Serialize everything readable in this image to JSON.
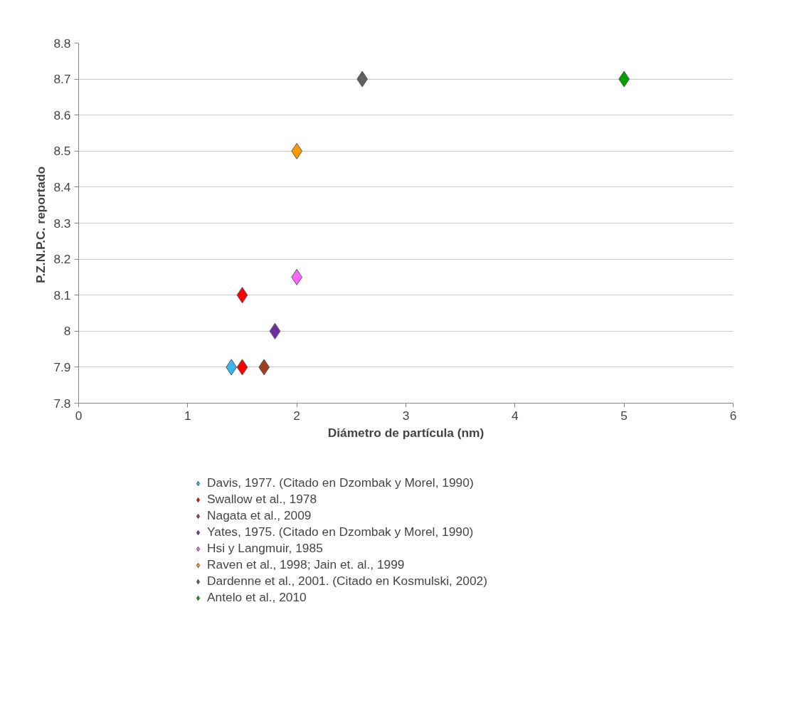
{
  "chart_data": {
    "type": "scatter",
    "xlabel": "Diámetro de partícula (nm)",
    "ylabel": "P.Z.N.P.C.  reportado",
    "xlim": [
      0,
      6
    ],
    "xticks": [
      0,
      1,
      2,
      3,
      4,
      5,
      6
    ],
    "ylim": [
      7.8,
      8.8
    ],
    "yticks": [
      7.8,
      7.9,
      8,
      8.1,
      8.2,
      8.3,
      8.4,
      8.5,
      8.6,
      8.7,
      8.8
    ],
    "grid": "y",
    "legend": "bottom",
    "marker": "diamond",
    "series": [
      {
        "name": "Davis, 1977. (Citado en Dzombak y Morel, 1990)",
        "color": "#3cb4f0",
        "x": [
          1.4
        ],
        "values": [
          7.9
        ]
      },
      {
        "name": "Swallow et al., 1978",
        "color": "#ff0000",
        "x": [
          1.5,
          1.5
        ],
        "values": [
          8.1,
          7.9
        ]
      },
      {
        "name": "Nagata et al., 2009",
        "color": "#a0401c",
        "x": [
          1.7
        ],
        "values": [
          7.9
        ]
      },
      {
        "name": "Yates, 1975. (Citado en Dzombak y Morel, 1990)",
        "color": "#7030a0",
        "x": [
          1.8
        ],
        "values": [
          8.0
        ]
      },
      {
        "name": "Hsi y Langmuir, 1985",
        "color": "#ff66ff",
        "x": [
          2.0
        ],
        "values": [
          8.15
        ]
      },
      {
        "name": "Raven et al., 1998; Jain et. al., 1999",
        "color": "#ff9900",
        "x": [
          2.0
        ],
        "values": [
          8.5
        ]
      },
      {
        "name": "Dardenne et al., 2001. (Citado en Kosmulski, 2002)",
        "color": "#606060",
        "x": [
          2.6
        ],
        "values": [
          8.7
        ]
      },
      {
        "name": "Antelo et al., 2010",
        "color": "#00a000",
        "x": [
          5.0
        ],
        "values": [
          8.7
        ]
      }
    ]
  }
}
